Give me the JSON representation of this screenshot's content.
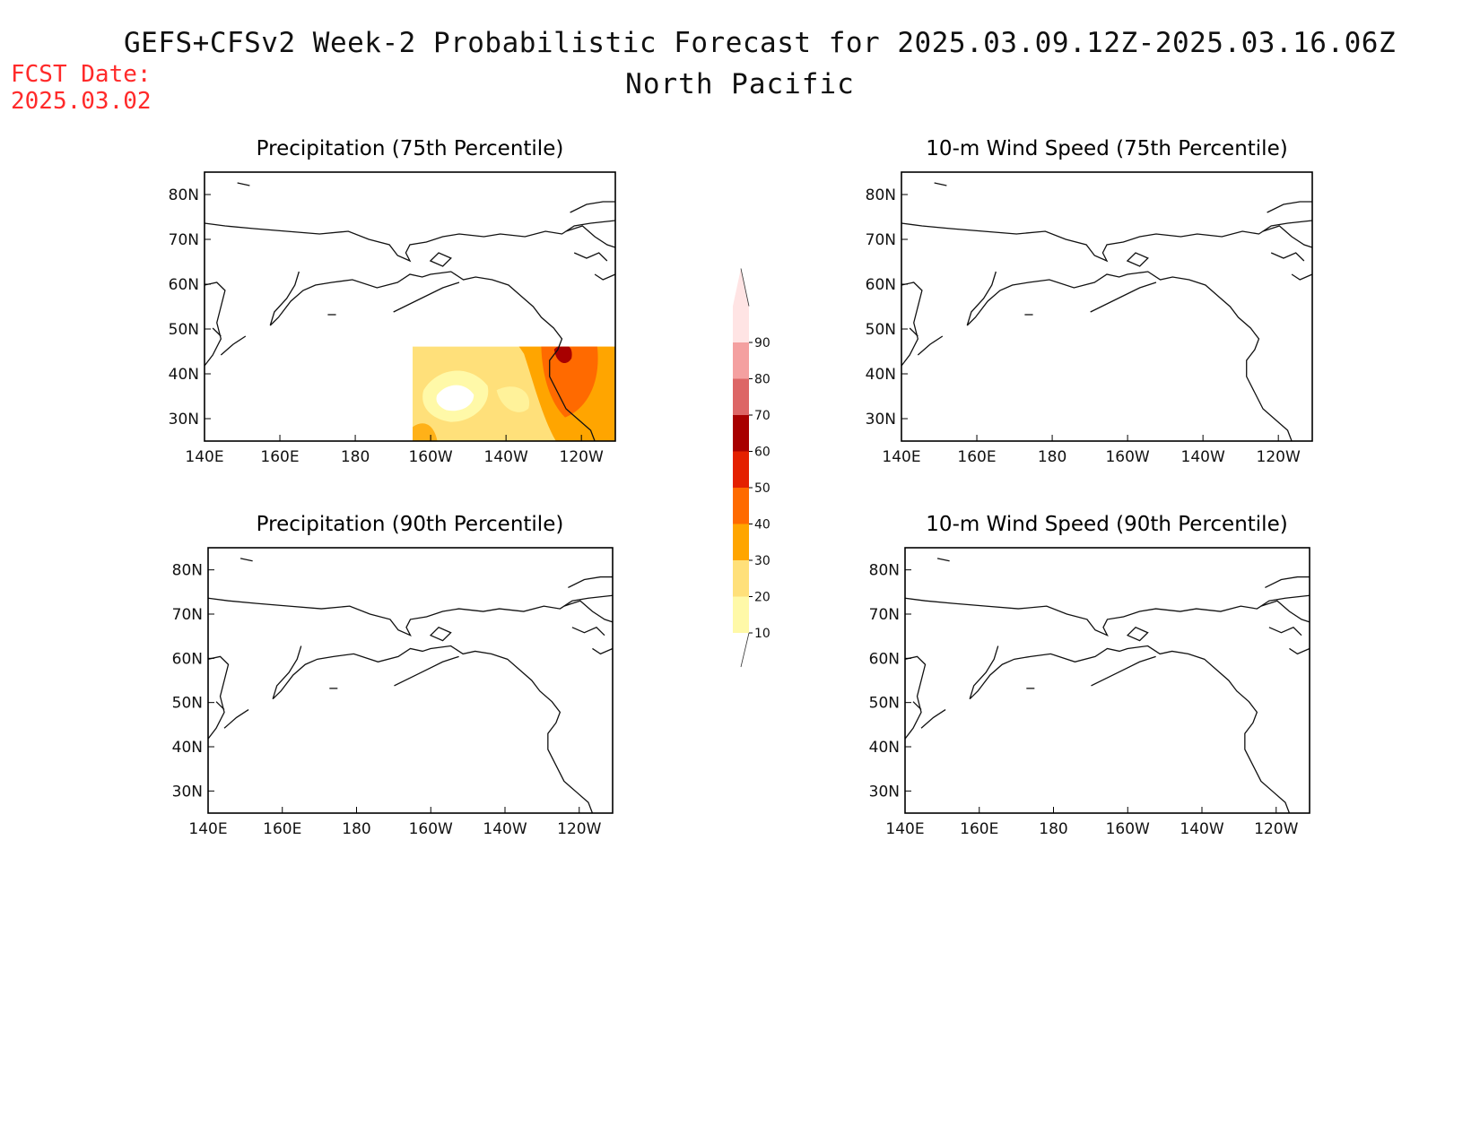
{
  "header": {
    "main_title": "GEFS+CFSv2 Week-2 Probabilistic Forecast for 2025.03.09.12Z-2025.03.16.06Z",
    "region": "North Pacific",
    "fcst_label": "FCST Date:",
    "fcst_date": "2025.03.02"
  },
  "axes": {
    "lat_ticks": [
      "80N",
      "70N",
      "60N",
      "50N",
      "40N",
      "30N"
    ],
    "lon_ticks": [
      "140E",
      "160E",
      "180",
      "160W",
      "140W",
      "120W"
    ]
  },
  "panels": [
    {
      "id": "precip75",
      "title": "Precipitation (75th Percentile)"
    },
    {
      "id": "wind75",
      "title": "10-m Wind Speed (75th Percentile)"
    },
    {
      "id": "precip90",
      "title": "Precipitation (90th Percentile)"
    },
    {
      "id": "wind90",
      "title": "10-m Wind Speed (90th Percentile)"
    }
  ],
  "colorbar": {
    "labels": [
      "10",
      "20",
      "30",
      "40",
      "50",
      "60",
      "70",
      "80",
      "90"
    ],
    "colors": [
      "#fff9a8",
      "#ffe07a",
      "#ffa500",
      "#ff6a00",
      "#e42000",
      "#a80000",
      "#dd6666",
      "#f4a0a0",
      "#ffe4e4"
    ]
  }
}
